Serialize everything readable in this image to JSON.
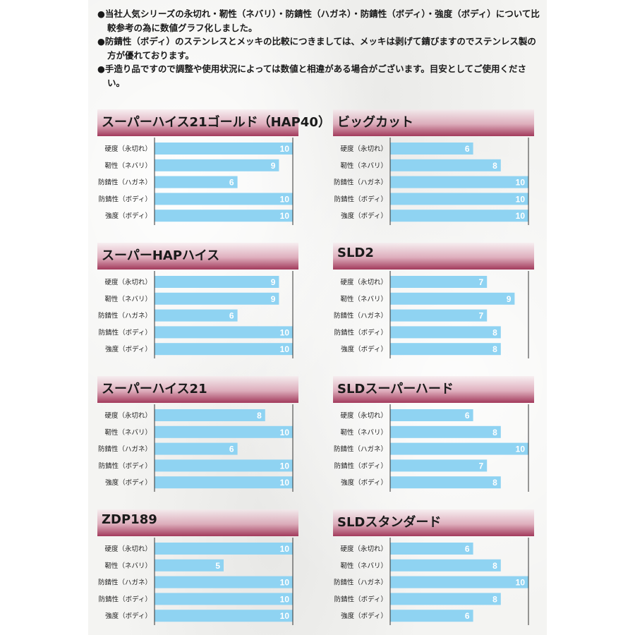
{
  "notes": [
    "●当社人気シリーズの永切れ・靭性（ネバリ）・防錆性（ハガネ）・防錆性（ボディ）・強度（ボディ）について比較参考の為に数値グラフ化しました。",
    "●防錆性（ボディ）のステンレスとメッキの比較につきましては、メッキは剥げて錆びますのでステンレス製の方が優れております。",
    "●手造り品ですので調整や使用状況によっては数値と相違がある場合がございます。目安としてご使用ください。"
  ],
  "colors": {
    "bar": "#8fd3f2",
    "value_text": "#ffffff",
    "axis": "#333333",
    "header_dark": "#a23a5c"
  },
  "chart_data": [
    {
      "type": "bar",
      "title": "スーパーハイス21ゴールド（HAP40）",
      "categories": [
        "硬度（永切れ）",
        "靭性（ネバリ）",
        "防錆性（ハガネ）",
        "防錆性（ボディ）",
        "強度（ボディ）"
      ],
      "values": [
        10,
        9,
        6,
        10,
        10
      ],
      "xlim": [
        0,
        10
      ],
      "orientation": "horizontal"
    },
    {
      "type": "bar",
      "title": "ビッグカット",
      "categories": [
        "硬度（永切れ）",
        "靭性（ネバリ）",
        "防錆性（ハガネ）",
        "防錆性（ボディ）",
        "強度（ボディ）"
      ],
      "values": [
        6,
        8,
        10,
        10,
        10
      ],
      "xlim": [
        0,
        10
      ],
      "orientation": "horizontal"
    },
    {
      "type": "bar",
      "title": "スーパーHAPハイス",
      "categories": [
        "硬度（永切れ）",
        "靭性（ネバリ）",
        "防錆性（ハガネ）",
        "防錆性（ボディ）",
        "強度（ボディ）"
      ],
      "values": [
        9,
        9,
        6,
        10,
        10
      ],
      "xlim": [
        0,
        10
      ],
      "orientation": "horizontal"
    },
    {
      "type": "bar",
      "title": "SLD2",
      "categories": [
        "硬度（永切れ）",
        "靭性（ネバリ）",
        "防錆性（ハガネ）",
        "防錆性（ボディ）",
        "強度（ボディ）"
      ],
      "values": [
        7,
        9,
        7,
        8,
        8
      ],
      "xlim": [
        0,
        10
      ],
      "orientation": "horizontal"
    },
    {
      "type": "bar",
      "title": "スーパーハイス21",
      "categories": [
        "硬度（永切れ）",
        "靭性（ネバリ）",
        "防錆性（ハガネ）",
        "防錆性（ボディ）",
        "強度（ボディ）"
      ],
      "values": [
        8,
        10,
        6,
        10,
        10
      ],
      "xlim": [
        0,
        10
      ],
      "orientation": "horizontal"
    },
    {
      "type": "bar",
      "title": "SLDスーパーハード",
      "categories": [
        "硬度（永切れ）",
        "靭性（ネバリ）",
        "防錆性（ハガネ）",
        "防錆性（ボディ）",
        "強度（ボディ）"
      ],
      "values": [
        6,
        8,
        10,
        7,
        8
      ],
      "xlim": [
        0,
        10
      ],
      "orientation": "horizontal"
    },
    {
      "type": "bar",
      "title": "ZDP189",
      "categories": [
        "硬度（永切れ）",
        "靭性（ネバリ）",
        "防錆性（ハガネ）",
        "防錆性（ボディ）",
        "強度（ボディ）"
      ],
      "values": [
        10,
        5,
        10,
        10,
        10
      ],
      "xlim": [
        0,
        10
      ],
      "orientation": "horizontal"
    },
    {
      "type": "bar",
      "title": "SLDスタンダード",
      "categories": [
        "硬度（永切れ）",
        "靭性（ネバリ）",
        "防錆性（ハガネ）",
        "防錆性（ボディ）",
        "強度（ボディ）"
      ],
      "values": [
        6,
        8,
        10,
        8,
        6
      ],
      "xlim": [
        0,
        10
      ],
      "orientation": "horizontal"
    }
  ]
}
